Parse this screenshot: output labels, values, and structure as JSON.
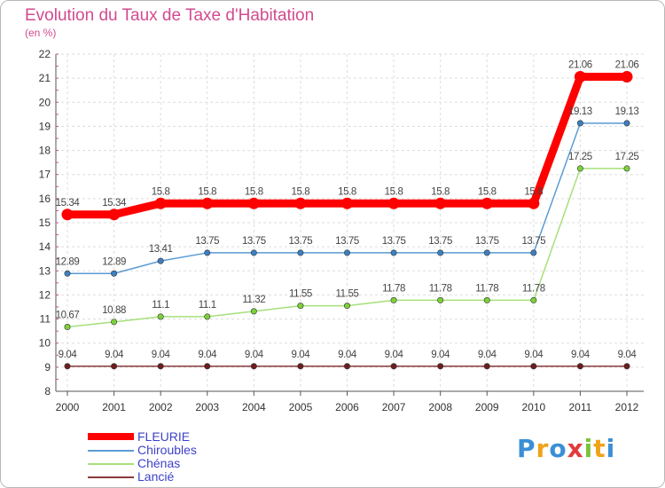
{
  "chart_data": {
    "type": "line",
    "title": "Evolution du Taux de Taxe d'Habitation",
    "subtitle": "(en %)",
    "x": [
      "2000",
      "2001",
      "2002",
      "2003",
      "2004",
      "2005",
      "2006",
      "2007",
      "2008",
      "2009",
      "2010",
      "2011",
      "2012"
    ],
    "ylim": [
      8,
      22
    ],
    "yticks": [
      "8",
      "9",
      "10",
      "11",
      "12",
      "13",
      "14",
      "15",
      "16",
      "17",
      "18",
      "19",
      "20",
      "21",
      "22"
    ],
    "grid": true,
    "series": [
      {
        "name": "FLEURIE",
        "color": "#ff0000",
        "marker": "#ff0000",
        "values": [
          15.34,
          15.34,
          15.8,
          15.8,
          15.8,
          15.8,
          15.8,
          15.8,
          15.8,
          15.8,
          15.8,
          21.06,
          21.06
        ],
        "labels": [
          "15.34",
          "15.34",
          "15.8",
          "15.8",
          "15.8",
          "15.8",
          "15.8",
          "15.8",
          "15.8",
          "15.8",
          "15.8",
          "21.06",
          "21.06"
        ]
      },
      {
        "name": "Chiroubles",
        "color": "#5b9bd5",
        "marker": "#3d7fc0",
        "values": [
          12.89,
          12.89,
          13.41,
          13.75,
          13.75,
          13.75,
          13.75,
          13.75,
          13.75,
          13.75,
          13.75,
          19.13,
          19.13
        ],
        "labels": [
          "12.89",
          "12.89",
          "13.41",
          "13.75",
          "13.75",
          "13.75",
          "13.75",
          "13.75",
          "13.75",
          "13.75",
          "13.75",
          "19.13",
          "19.13"
        ]
      },
      {
        "name": "Chénas",
        "color": "#a6e07a",
        "marker": "#7cd13a",
        "values": [
          10.67,
          10.88,
          11.1,
          11.1,
          11.32,
          11.55,
          11.55,
          11.78,
          11.78,
          11.78,
          11.78,
          17.25,
          17.25
        ],
        "labels": [
          "10.67",
          "10.88",
          "11.1",
          "11.1",
          "11.32",
          "11.55",
          "11.55",
          "11.78",
          "11.78",
          "11.78",
          "11.78",
          "17.25",
          "17.25"
        ]
      },
      {
        "name": "Lancié",
        "color": "#8b3a3a",
        "marker": "#6b1e1e",
        "values": [
          9.04,
          9.04,
          9.04,
          9.04,
          9.04,
          9.04,
          9.04,
          9.04,
          9.04,
          9.04,
          9.04,
          9.04,
          9.04
        ],
        "labels": [
          "9.04",
          "9.04",
          "9.04",
          "9.04",
          "9.04",
          "9.04",
          "9.04",
          "9.04",
          "9.04",
          "9.04",
          "9.04",
          "9.04",
          "9.04"
        ]
      }
    ]
  },
  "logo": {
    "letters": [
      "P",
      "r",
      "o",
      "x",
      "i",
      "t",
      "i"
    ],
    "colors": [
      "#3a8fd6",
      "#f0a21a",
      "#3a8fd6",
      "#e23a3a",
      "#7cc23a",
      "#f0a21a",
      "#3a8fd6"
    ]
  }
}
